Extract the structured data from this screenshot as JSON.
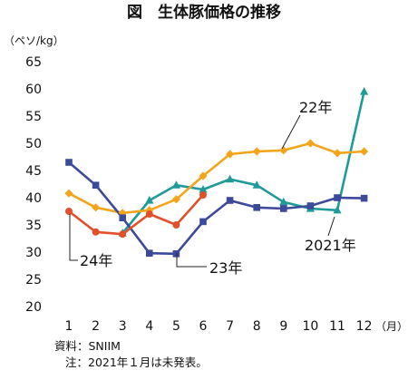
{
  "chart_data": {
    "type": "line",
    "title": "図　生体豚価格の推移",
    "ylabel": "（ペソ/kg）",
    "xlabel": "（月）",
    "categories": [
      "1",
      "2",
      "3",
      "4",
      "5",
      "6",
      "7",
      "8",
      "9",
      "10",
      "11",
      "12"
    ],
    "ylim": [
      20,
      65
    ],
    "yticks": [
      20,
      25,
      30,
      35,
      40,
      45,
      50,
      55,
      60,
      65
    ],
    "grid": false,
    "series": [
      {
        "name": "2021年",
        "color": "#1f9a98",
        "marker": "triangle",
        "values": [
          null,
          null,
          33.5,
          39.5,
          42.3,
          41.5,
          43.4,
          42.3,
          39.2,
          38.0,
          37.7,
          59.5
        ]
      },
      {
        "name": "22年",
        "color": "#f2a51a",
        "marker": "diamond",
        "values": [
          40.8,
          38.2,
          37.2,
          37.7,
          39.7,
          44.0,
          48.0,
          48.5,
          48.7,
          50.0,
          48.2,
          48.5
        ]
      },
      {
        "name": "23年",
        "color": "#3b4a9a",
        "marker": "square",
        "values": [
          46.5,
          42.3,
          36.3,
          29.8,
          29.7,
          35.6,
          39.5,
          38.2,
          38.0,
          38.5,
          40.0,
          39.9
        ]
      },
      {
        "name": "24年",
        "color": "#e0502a",
        "marker": "circle",
        "values": [
          37.5,
          33.7,
          33.3,
          37.0,
          35.0,
          40.5,
          null,
          null,
          null,
          null,
          null,
          null
        ]
      }
    ]
  },
  "notes": {
    "source": "資料：SNIIM",
    "note": "注：2021年１月は未発表。"
  }
}
